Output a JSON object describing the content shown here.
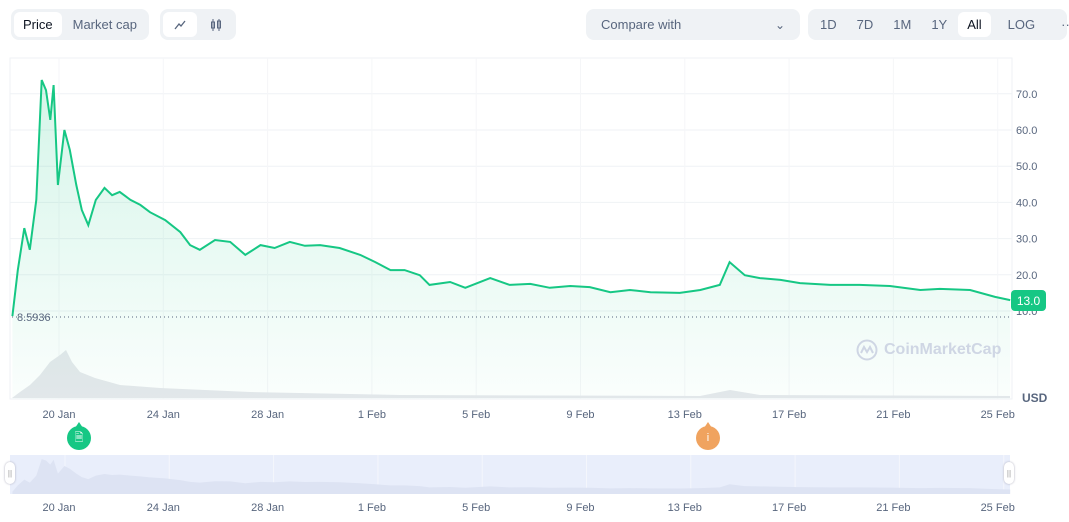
{
  "toolbar": {
    "metric_tabs": [
      {
        "label": "Price",
        "active": true
      },
      {
        "label": "Market cap",
        "active": false
      }
    ],
    "chart_type_icons": [
      "line-chart-icon",
      "candlestick-icon"
    ],
    "compare_placeholder": "Compare with",
    "ranges": [
      {
        "label": "1D"
      },
      {
        "label": "7D"
      },
      {
        "label": "1M"
      },
      {
        "label": "1Y"
      },
      {
        "label": "All",
        "active": true
      }
    ],
    "log_label": "LOG",
    "more_label": "···"
  },
  "current_price_label": "13.0",
  "min_price_label": "8.5936",
  "currency_label": "USD",
  "watermark": "CoinMarketCap",
  "colors": {
    "line": "#16c784",
    "marker_news": "#16c784",
    "marker_info": "#f0a35f",
    "navigator": "#e9eefb"
  },
  "chart_data": {
    "type": "area",
    "xlabel": "",
    "ylabel": "",
    "ylim": [
      10,
      70
    ],
    "y_ticks": [
      "10.0",
      "20.0",
      "30.0",
      "40.0",
      "50.0",
      "60.0",
      "70.0"
    ],
    "x_ticks": [
      "20 Jan",
      "24 Jan",
      "28 Jan",
      "1 Feb",
      "5 Feb",
      "9 Feb",
      "13 Feb",
      "17 Feb",
      "21 Feb",
      "25 Feb"
    ],
    "grid": true,
    "series": [
      {
        "points": [
          [
            "01-18T05",
            8.6
          ],
          [
            "01-18T10",
            21.3
          ],
          [
            "01-18T16",
            32.9
          ],
          [
            "01-18T21",
            26.9
          ],
          [
            "01-19T03",
            40.7
          ],
          [
            "01-19T08",
            73.8
          ],
          [
            "01-19T12",
            71.0
          ],
          [
            "01-19T16",
            62.8
          ],
          [
            "01-19T19",
            72.4
          ],
          [
            "01-19T23",
            44.8
          ],
          [
            "01-20T05",
            60.0
          ],
          [
            "01-20T10",
            54.5
          ],
          [
            "01-20T16",
            44.8
          ],
          [
            "01-20T21",
            37.9
          ],
          [
            "01-21T03",
            33.7
          ],
          [
            "01-21T10",
            40.7
          ],
          [
            "01-21T18",
            44.0
          ],
          [
            "01-22T01",
            42.0
          ],
          [
            "01-22T08",
            42.9
          ],
          [
            "01-22T18",
            40.7
          ],
          [
            "01-23T03",
            39.3
          ],
          [
            "01-23T12",
            37.3
          ],
          [
            "01-24T02",
            35.1
          ],
          [
            "01-24T16",
            31.8
          ],
          [
            "01-25T01",
            28.2
          ],
          [
            "01-25T10",
            26.9
          ],
          [
            "01-26T00",
            29.6
          ],
          [
            "01-26T14",
            29.1
          ],
          [
            "01-27T04",
            25.5
          ],
          [
            "01-27T18",
            28.2
          ],
          [
            "01-28T07",
            27.4
          ],
          [
            "01-28T21",
            29.1
          ],
          [
            "01-29T11",
            28.0
          ],
          [
            "01-30T01",
            28.2
          ],
          [
            "01-30T19",
            27.4
          ],
          [
            "01-31T14",
            25.5
          ],
          [
            "02-01T04",
            23.5
          ],
          [
            "02-01T18",
            21.3
          ],
          [
            "02-02T07",
            21.3
          ],
          [
            "02-02T21",
            19.9
          ],
          [
            "02-03T06",
            17.2
          ],
          [
            "02-04T01",
            18.0
          ],
          [
            "02-04T15",
            16.4
          ],
          [
            "02-05T14",
            19.1
          ],
          [
            "02-06T08",
            17.2
          ],
          [
            "02-07T03",
            17.5
          ],
          [
            "02-07T21",
            16.4
          ],
          [
            "02-08T16",
            16.9
          ],
          [
            "02-09T10",
            16.6
          ],
          [
            "02-10T05",
            15.2
          ],
          [
            "02-10T23",
            15.8
          ],
          [
            "02-11T18",
            15.2
          ],
          [
            "02-12T21",
            15.0
          ],
          [
            "02-13T16",
            15.8
          ],
          [
            "02-14T10",
            17.2
          ],
          [
            "02-14T19",
            23.5
          ],
          [
            "02-15T09",
            19.9
          ],
          [
            "02-15T23",
            19.1
          ],
          [
            "02-16T18",
            18.6
          ],
          [
            "02-17T12",
            17.7
          ],
          [
            "02-18T16",
            17.2
          ],
          [
            "02-19T19",
            17.2
          ],
          [
            "02-20T23",
            16.9
          ],
          [
            "02-22T03",
            15.8
          ],
          [
            "02-22T21",
            16.1
          ],
          [
            "02-24T01",
            15.8
          ],
          [
            "02-25T00",
            13.9
          ],
          [
            "02-25T14",
            13.0
          ]
        ]
      }
    ],
    "events": [
      {
        "date": "01-20",
        "icon": "document-icon"
      },
      {
        "date": "02-14",
        "icon": "info-icon",
        "label": "i"
      }
    ]
  }
}
